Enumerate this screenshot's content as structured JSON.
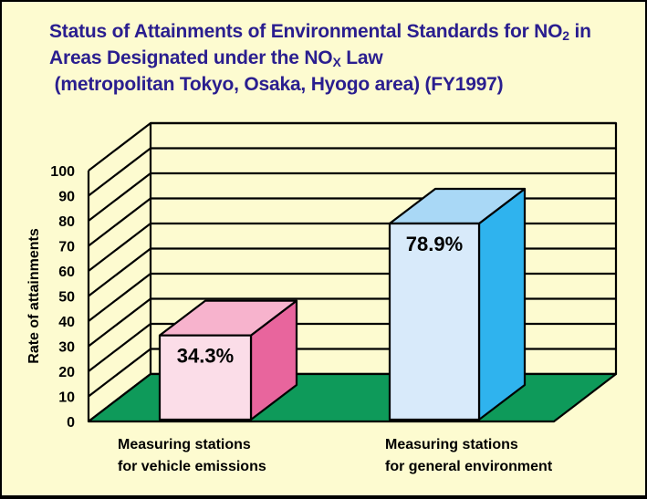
{
  "title": {
    "line1_pre": "Status of Attainments of Environmental Standards for NO",
    "line1_sub": "2",
    "line1_post": " in",
    "line2_pre": "Areas Designated under the NO",
    "line2_sub": "X",
    "line2_post": " Law",
    "line3": " (metropolitan Tokyo, Osaka, Hyogo area) (FY1997)"
  },
  "chart_data": {
    "type": "bar",
    "categories": [
      [
        "Measuring stations",
        "for vehicle emissions"
      ],
      [
        "Measuring stations",
        "for general environment"
      ]
    ],
    "values": [
      34.3,
      78.9
    ],
    "value_labels": [
      "34.3%",
      "78.9%"
    ],
    "ylabel": "Rate of attainments",
    "ylim": [
      0,
      100
    ],
    "yticks": [
      0,
      10,
      20,
      30,
      40,
      50,
      60,
      70,
      80,
      90,
      100
    ],
    "grid": true,
    "style": "3d",
    "colors": {
      "background": "#fdfbd0",
      "floor": "#0e9a5a",
      "title": "#2a1e8f",
      "bars": [
        {
          "front": "#fbdde8",
          "top": "#f7b3cd",
          "side": "#e8659d"
        },
        {
          "front": "#d8eafa",
          "top": "#a9d8f6",
          "side": "#2fb3ee"
        }
      ]
    }
  }
}
